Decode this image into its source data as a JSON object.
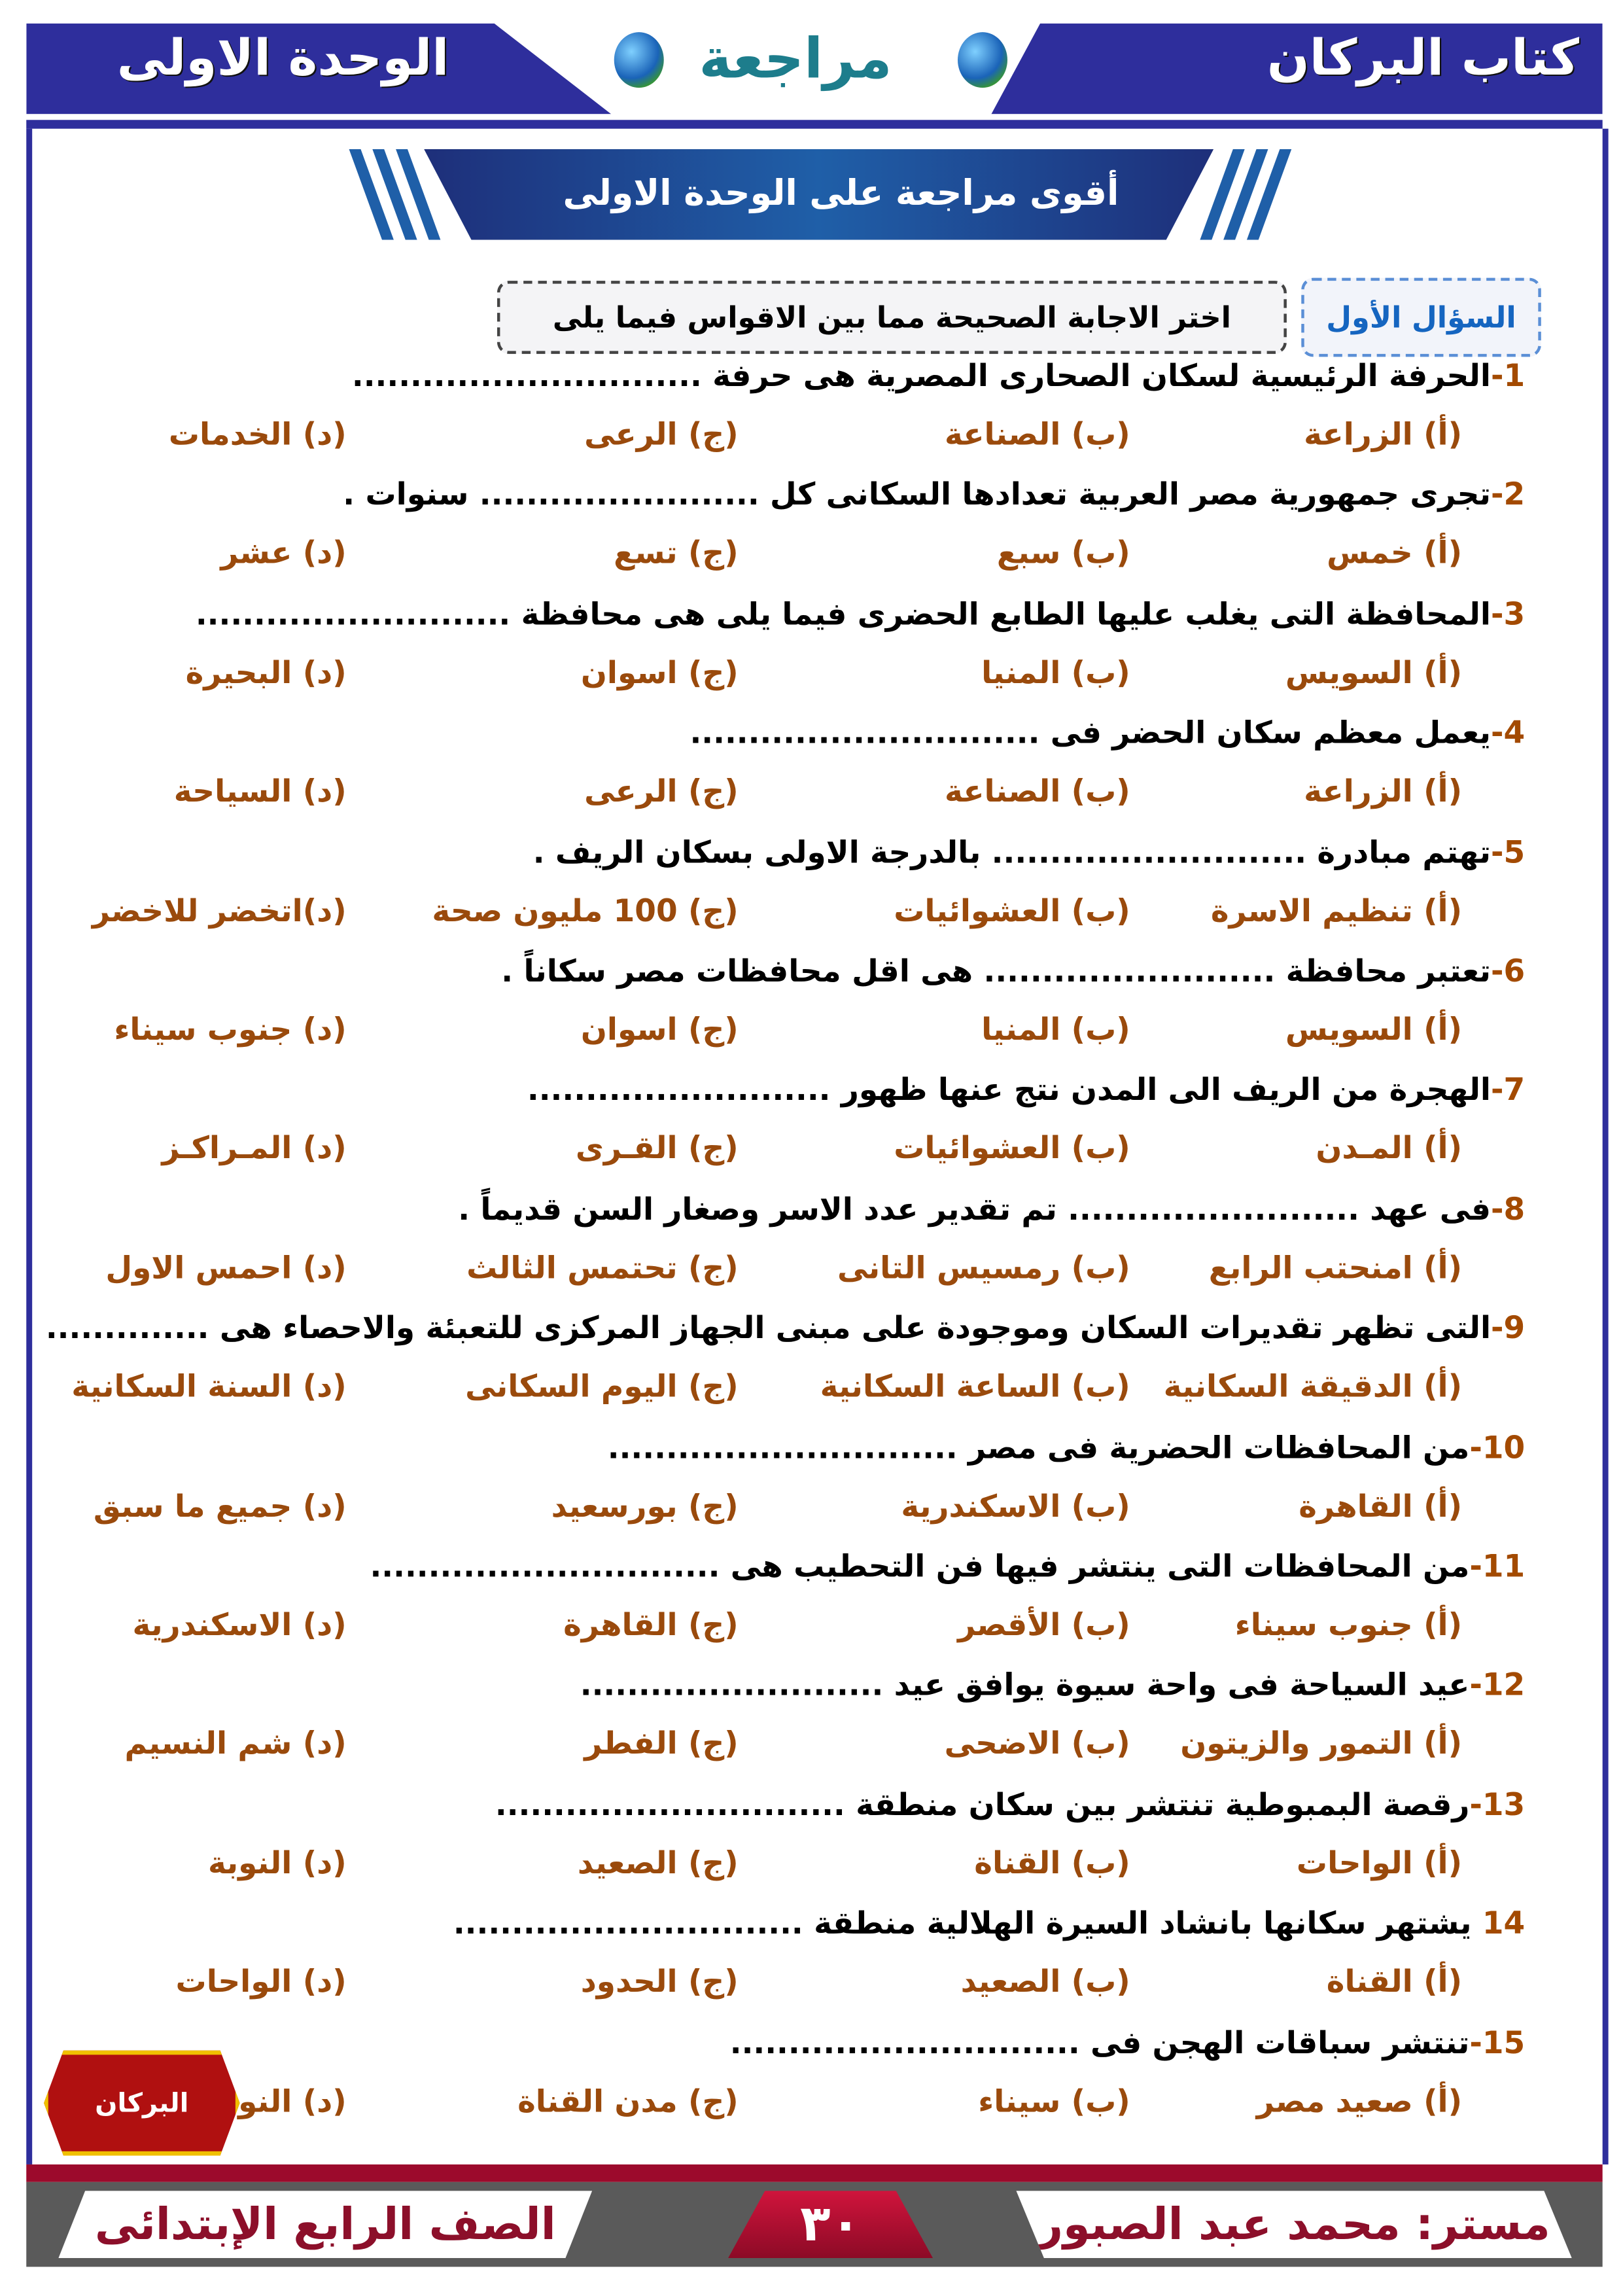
{
  "header": {
    "book_title": "كتاب البركان",
    "review": "مراجعة",
    "unit": "الوحدة الاولى",
    "globe_icon": "globe-icon"
  },
  "banner": {
    "title": "أقوى مراجعة على الوحدة الاولى"
  },
  "section": {
    "label": "السؤال الأول",
    "instruction": "اختر الاجابة الصحيحة مما بين الاقواس فيما يلى"
  },
  "questions": [
    {
      "num": "1",
      "sep": "-",
      "text": "الحرفة الرئيسية لسكان الصحارى المصرية هى حرفة ..............................",
      "options": [
        "(أ) الزراعة",
        "(ب) الصناعة",
        "(ج) الرعى",
        "(د) الخدمات"
      ]
    },
    {
      "num": "2",
      "sep": "-",
      "text": "تجرى جمهورية مصر العربية تعدادها السكانى كل ........................ سنوات .",
      "options": [
        "(أ) خمس",
        "(ب) سبع",
        "(ج) تسع",
        "(د) عشر"
      ]
    },
    {
      "num": "3",
      "sep": "-",
      "text": "المحافظة التى يغلب عليها الطابع الحضرى فيما يلى هى محافظة ...........................",
      "options": [
        "(أ) السويس",
        "(ب) المنيا",
        "(ج) اسوان",
        "(د) البحيرة"
      ]
    },
    {
      "num": "4",
      "sep": "-",
      "text": "يعمل معظم سكان الحضر فى ..............................",
      "options": [
        "(أ) الزراعة",
        "(ب) الصناعة",
        "(ج) الرعى",
        "(د) السياحة"
      ]
    },
    {
      "num": "5",
      "sep": "-",
      "text": "تهتم مبادرة ........................... بالدرجة الاولى بسكان الريف .",
      "options": [
        "(أ) تنظيم الاسرة",
        "(ب) العشوائيات",
        "(ج) 100 مليون صحة",
        "(د)اتخضر للاخضر"
      ]
    },
    {
      "num": "6",
      "sep": "-",
      "text": "تعتبر محافظة ......................... هى اقل محافظات مصر سكاناً .",
      "options": [
        "(أ) السويس",
        "(ب) المنيا",
        "(ج) اسوان",
        "(د) جنوب سيناء"
      ]
    },
    {
      "num": "7",
      "sep": "-",
      "text": "الهجرة من الريف الى المدن نتج عنها ظهور ..........................",
      "options": [
        "(أ) المـدن",
        "(ب) العشوائيات",
        "(ج) القـرى",
        "(د) المـراكـز"
      ]
    },
    {
      "num": "8",
      "sep": "-",
      "text": "فى عهد ......................... تم تقدير عدد الاسر وصغار السن قديماً .",
      "options": [
        "(أ) امنحتب الرابع",
        "(ب) رمسيس التانى",
        "(ج) تحتمس الثالث",
        "(د) احمس الاول"
      ]
    },
    {
      "num": "9",
      "sep": "-",
      "text": "التى تظهر تقديرات السكان وموجودة على مبنى الجهاز المركزى للتعبئة والاحصاء هى ..............",
      "options": [
        "(أ) الدقيقة السكانية",
        "(ب) الساعة السكانية",
        "(ج) اليوم السكانى",
        "(د) السنة السكانية"
      ]
    },
    {
      "num": "10",
      "sep": "-",
      "text": "من المحافظات الحضرية فى مصر ..............................",
      "options": [
        "(أ) القاهرة",
        "(ب) الاسكندرية",
        "(ج) بورسعيد",
        "(د) جميع ما سبق"
      ]
    },
    {
      "num": "11",
      "sep": "-",
      "text": "من المحافظات التى ينتشر فيها فن التحطيب هى ..............................",
      "options": [
        "(أ) جنوب سيناء",
        "(ب) الأقصر",
        "(ج) القاهرة",
        "(د) الاسكندرية"
      ]
    },
    {
      "num": "12",
      "sep": "-",
      "text": "عيد السياحة فى واحة سيوة يوافق عيد ..........................",
      "options": [
        "(أ) التمور والزيتون",
        "(ب) الاضحى",
        "(ج) الفطر",
        "(د) شم النسيم"
      ]
    },
    {
      "num": "13",
      "sep": "-",
      "text": "رقصة البمبوطية تنتشر بين سكان منطقة ..............................",
      "options": [
        "(أ) الواحات",
        "(ب) القناة",
        "(ج) الصعيد",
        "(د) النوبة"
      ]
    },
    {
      "num": "14",
      "sep": "",
      "text": " يشتهر سكانها بانشاد السيرة الهلالية منطقة ..............................",
      "options": [
        "(أ) القناة",
        "(ب) الصعيد",
        "(ج) الحدود",
        "(د) الواحات"
      ]
    },
    {
      "num": "15",
      "sep": "-",
      "text": "تنتشر سباقات الهجن فى ..............................",
      "options": [
        "(أ) صعيد مصر",
        "(ب) سيناء",
        "(ج) مدن القناة",
        "(د) النوبة"
      ]
    }
  ],
  "badge": {
    "text": "البركان"
  },
  "footer": {
    "teacher": "مستر: محمد عبد الصبور",
    "page_number": "٣٠",
    "grade": "الصف الرابع الإبتدائى"
  },
  "colors": {
    "header_blue": "#2e2e9c",
    "option_brown": "#9a4a0c",
    "footer_red": "#9c0a2c",
    "footer_gray": "#5a5a5a"
  }
}
